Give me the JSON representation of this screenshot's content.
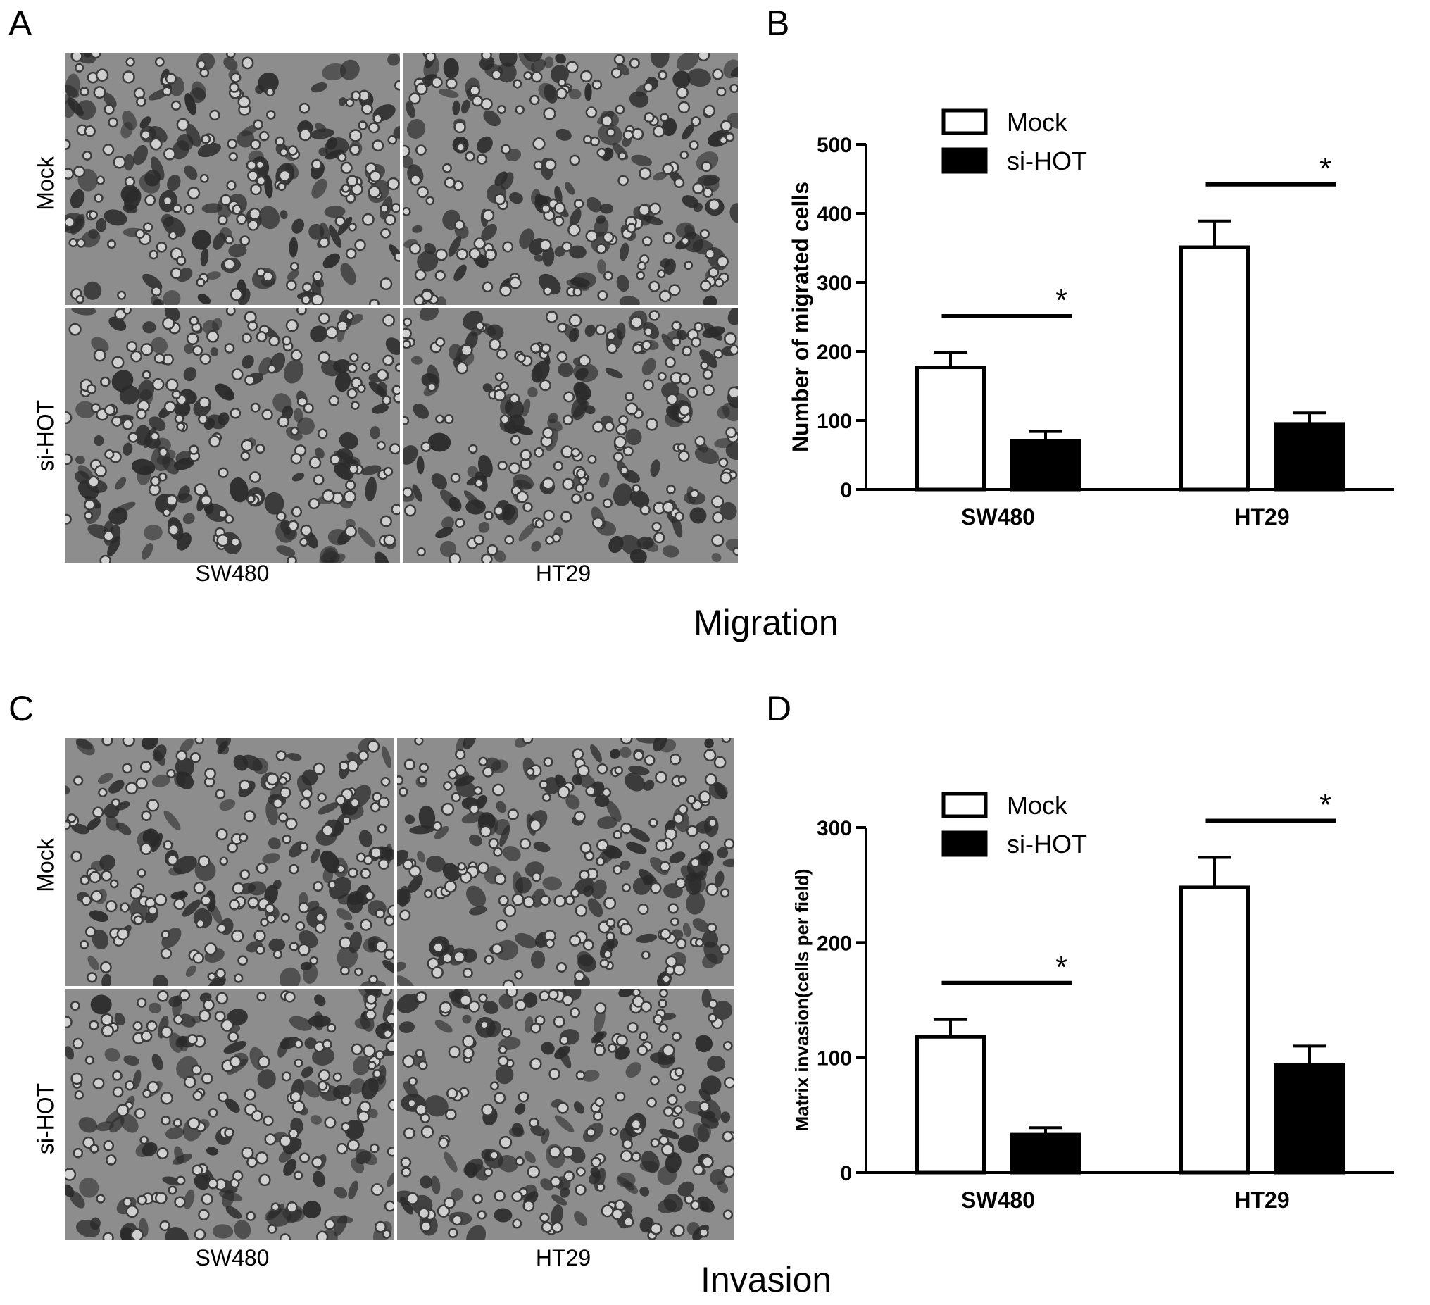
{
  "top": {
    "letter_a": "A",
    "letter_b": "B",
    "rows": [
      "Mock",
      "si-HOT"
    ],
    "columns": [
      "SW480",
      "HT29"
    ],
    "title": "Migration"
  },
  "bottom": {
    "letter_c": "C",
    "letter_d": "D",
    "rows": [
      "Mock",
      "si-HOT"
    ],
    "columns": [
      "SW480",
      "HT29"
    ],
    "title": "Invasion"
  },
  "colors": {
    "micro_background": "#8d8d8d",
    "cell_dark": "#2a2a2a",
    "cell_ring": "#3a3a3a",
    "mock_fill": "#ffffff",
    "sihot_fill": "#000000"
  },
  "chart_data": [
    {
      "panel": "B",
      "type": "bar",
      "categories": [
        "SW480",
        "HT29"
      ],
      "series": [
        {
          "name": "Mock",
          "values": [
            177,
            351
          ],
          "errors": [
            21,
            38
          ]
        },
        {
          "name": "si-HOT",
          "values": [
            70,
            95
          ],
          "errors": [
            14,
            16
          ]
        }
      ],
      "significance": [
        "*",
        "*"
      ],
      "ylabel": "Number of migrated cells",
      "ylim": [
        0,
        500
      ],
      "yticks": [
        "0",
        "100",
        "200",
        "300",
        "400",
        "500"
      ],
      "legend": "top-left",
      "grid": false
    },
    {
      "panel": "D",
      "type": "bar",
      "categories": [
        "SW480",
        "HT29"
      ],
      "series": [
        {
          "name": "Mock",
          "values": [
            118,
            248
          ],
          "errors": [
            15,
            26
          ]
        },
        {
          "name": "si-HOT",
          "values": [
            33,
            94
          ],
          "errors": [
            6,
            16
          ]
        }
      ],
      "significance": [
        "*",
        "*"
      ],
      "ylabel": "Matrix invasion(cells per field)",
      "ylim": [
        0,
        300
      ],
      "yticks": [
        "0",
        "100",
        "200",
        "300"
      ],
      "legend": "top-left",
      "grid": false
    }
  ]
}
